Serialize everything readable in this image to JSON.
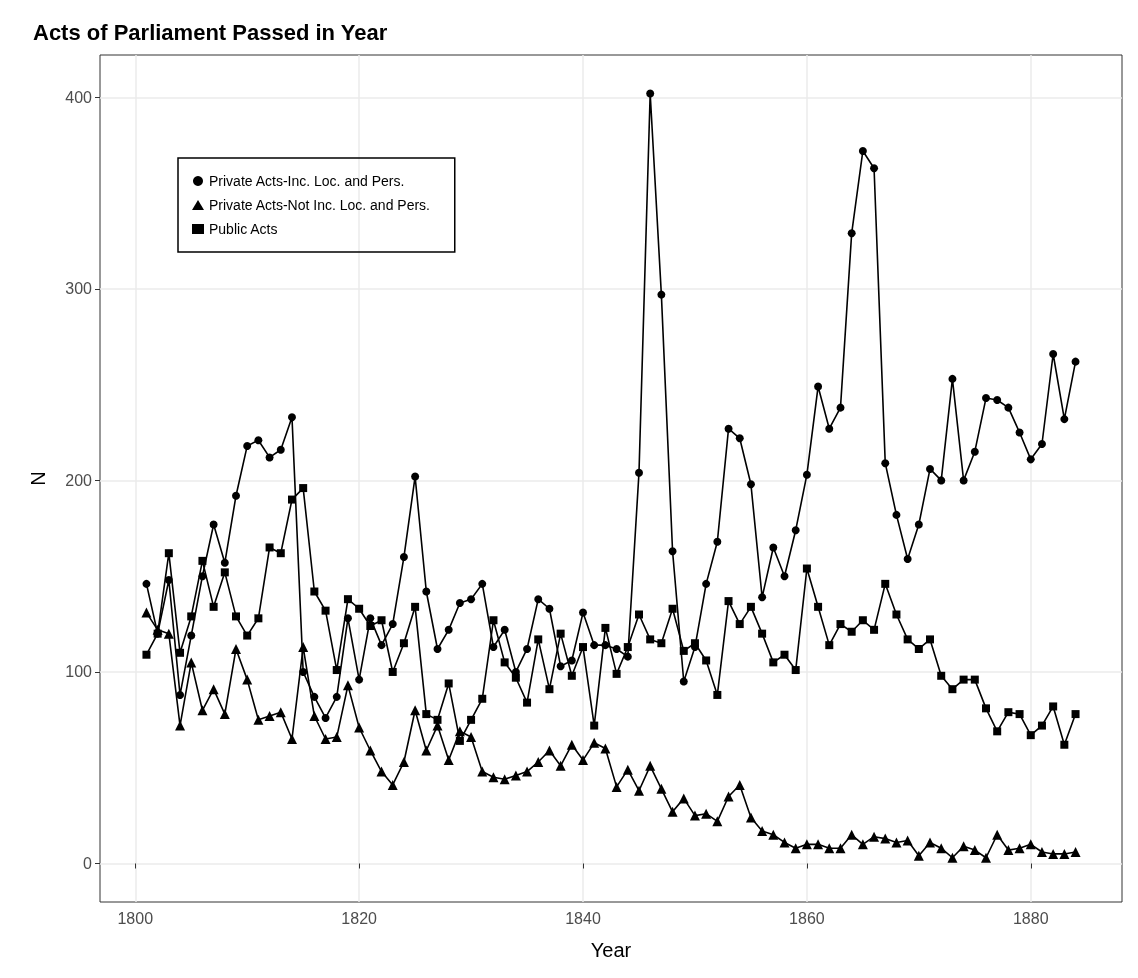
{
  "chart_data": {
    "type": "line",
    "title": "Acts of Parliament Passed in Year",
    "xlabel": "Year",
    "ylabel": "N",
    "x": [
      1801,
      1802,
      1803,
      1804,
      1805,
      1806,
      1807,
      1808,
      1809,
      1810,
      1811,
      1812,
      1813,
      1814,
      1815,
      1816,
      1817,
      1818,
      1819,
      1820,
      1821,
      1822,
      1823,
      1824,
      1825,
      1826,
      1827,
      1828,
      1829,
      1830,
      1831,
      1832,
      1833,
      1834,
      1835,
      1836,
      1837,
      1838,
      1839,
      1840,
      1841,
      1842,
      1843,
      1844,
      1845,
      1846,
      1847,
      1848,
      1849,
      1850,
      1851,
      1852,
      1853,
      1854,
      1855,
      1856,
      1857,
      1858,
      1859,
      1860,
      1861,
      1862,
      1863,
      1864,
      1865,
      1866,
      1867,
      1868,
      1869,
      1870,
      1871,
      1872,
      1873,
      1874,
      1875,
      1876,
      1877,
      1878,
      1879,
      1880,
      1881,
      1882,
      1883,
      1884
    ],
    "series": [
      {
        "name": "Private Acts-Inc. Loc. and Pers.",
        "color": "#000000",
        "marker": "circle",
        "values": [
          146,
          120,
          148,
          88,
          119,
          150,
          177,
          157,
          192,
          218,
          221,
          212,
          216,
          233,
          100,
          87,
          76,
          87,
          128,
          96,
          128,
          114,
          125,
          160,
          202,
          142,
          112,
          122,
          136,
          138,
          146,
          113,
          122,
          100,
          112,
          138,
          133,
          103,
          106,
          131,
          114,
          114,
          112,
          108,
          204,
          402,
          297,
          163,
          95,
          113,
          146,
          168,
          227,
          222,
          198,
          139,
          165,
          150,
          174,
          203,
          249,
          227,
          238,
          329,
          372,
          363,
          209,
          182,
          159,
          177,
          206,
          200,
          253,
          200,
          215,
          243,
          242,
          238,
          225,
          211,
          219,
          266,
          232,
          262
        ]
      },
      {
        "name": "Private Acts-Not Inc. Loc. and Pers.",
        "color": "#000000",
        "marker": "triangle",
        "values": [
          131,
          122,
          120,
          72,
          105,
          80,
          91,
          78,
          112,
          96,
          75,
          77,
          79,
          65,
          113,
          77,
          65,
          66,
          93,
          71,
          59,
          48,
          41,
          53,
          80,
          59,
          72,
          54,
          69,
          66,
          48,
          45,
          44,
          46,
          48,
          53,
          59,
          51,
          62,
          54,
          63,
          60,
          40,
          49,
          38,
          51,
          39,
          27,
          34,
          25,
          26,
          22,
          35,
          41,
          24,
          17,
          15,
          11,
          8,
          10,
          10,
          8,
          8,
          15,
          10,
          14,
          13,
          11,
          12,
          4,
          11,
          8,
          3,
          9,
          7,
          3,
          15,
          7,
          8,
          10,
          6,
          5,
          5,
          6
        ]
      },
      {
        "name": "Public Acts",
        "color": "#000000",
        "marker": "square",
        "values": [
          109,
          120,
          162,
          110,
          129,
          158,
          134,
          152,
          129,
          119,
          128,
          165,
          162,
          190,
          196,
          142,
          132,
          101,
          138,
          133,
          124,
          127,
          100,
          115,
          134,
          78,
          75,
          94,
          64,
          75,
          86,
          127,
          105,
          97,
          84,
          117,
          91,
          120,
          98,
          113,
          72,
          123,
          99,
          113,
          130,
          117,
          115,
          133,
          111,
          115,
          106,
          88,
          137,
          125,
          134,
          120,
          105,
          109,
          101,
          154,
          134,
          114,
          125,
          121,
          127,
          122,
          146,
          130,
          117,
          112,
          117,
          98,
          91,
          96,
          96,
          81,
          69,
          79,
          78,
          67,
          72,
          82,
          62,
          78
        ]
      }
    ],
    "xlim": [
      1796.85,
      1888.15
    ],
    "xticks": [
      1800,
      1820,
      1840,
      1860,
      1880
    ],
    "ylim": [
      -20.1,
      422.1
    ],
    "yticks": [
      0,
      100,
      200,
      300,
      400
    ],
    "grid": true,
    "legend": "top left",
    "line_style": "solid"
  }
}
